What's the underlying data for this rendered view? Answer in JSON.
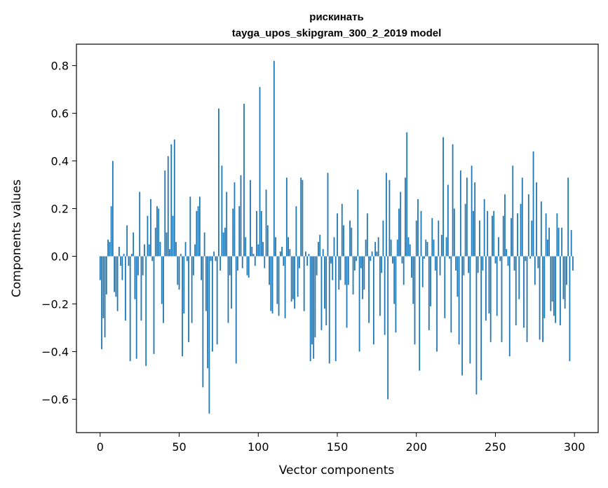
{
  "chart_data": {
    "type": "bar",
    "title": "рискинать",
    "subtitle": "tayga_upos_skipgram_300_2_2019 model",
    "xlabel": "Vector components",
    "ylabel": "Components values",
    "xlim": [
      -15,
      315
    ],
    "ylim": [
      -0.74,
      0.89
    ],
    "xticks": [
      0,
      50,
      100,
      150,
      200,
      250,
      300
    ],
    "xtick_labels": [
      "0",
      "50",
      "100",
      "150",
      "200",
      "250",
      "300"
    ],
    "yticks": [
      -0.6,
      -0.4,
      -0.2,
      0.0,
      0.2,
      0.4,
      0.6,
      0.8
    ],
    "ytick_labels": [
      "−0.6",
      "−0.4",
      "−0.2",
      "0.0",
      "0.2",
      "0.4",
      "0.6",
      "0.8"
    ],
    "grid": false,
    "bar_color": "#1f77b4",
    "x": "0..299",
    "values": [
      -0.1,
      -0.39,
      -0.26,
      -0.34,
      -0.16,
      0.07,
      0.06,
      0.21,
      0.4,
      -0.15,
      -0.17,
      -0.23,
      0.04,
      -0.04,
      -0.1,
      0.01,
      -0.27,
      0.13,
      -0.04,
      -0.44,
      0.01,
      0.1,
      -0.18,
      -0.43,
      -0.08,
      0.27,
      -0.27,
      -0.08,
      0.05,
      -0.46,
      0.17,
      0.05,
      0.24,
      -0.02,
      -0.41,
      0.12,
      0.21,
      0.2,
      0.06,
      -0.2,
      -0.28,
      0.36,
      0.1,
      0.42,
      0.03,
      0.47,
      0.17,
      0.49,
      0.06,
      -0.12,
      -0.14,
      0.01,
      -0.42,
      -0.24,
      0.06,
      -0.02,
      -0.36,
      0.25,
      -0.28,
      -0.08,
      0.05,
      0.19,
      0.21,
      0.25,
      -0.1,
      -0.55,
      0.1,
      -0.23,
      -0.47,
      -0.66,
      -0.02,
      -0.4,
      0.02,
      -0.02,
      -0.37,
      0.62,
      -0.06,
      0.38,
      0.1,
      0.12,
      0.27,
      -0.28,
      -0.08,
      -0.22,
      0.2,
      0.31,
      -0.45,
      -0.06,
      0.21,
      0.34,
      -0.05,
      0.64,
      0.08,
      -0.08,
      -0.09,
      0.32,
      0.04,
      0.01,
      -0.04,
      0.19,
      0.05,
      0.71,
      0.19,
      0.06,
      -0.05,
      0.28,
      0.13,
      -0.12,
      -0.23,
      -0.24,
      0.82,
      0.08,
      -0.2,
      -0.25,
      0.02,
      0.04,
      -0.04,
      -0.26,
      0.33,
      0.08,
      0.03,
      -0.19,
      -0.18,
      -0.22,
      0.21,
      -0.17,
      -0.05,
      0.33,
      0.32,
      -0.23,
      0.02,
      -0.04,
      0.01,
      -0.44,
      -0.37,
      -0.43,
      -0.34,
      -0.08,
      0.06,
      0.09,
      -0.31,
      0.03,
      -0.22,
      -0.29,
      0.35,
      -0.45,
      -0.03,
      -0.1,
      0.08,
      -0.44,
      0.18,
      -0.14,
      -0.1,
      0.22,
      0.13,
      -0.12,
      -0.3,
      -0.12,
      0.15,
      0.12,
      -0.16,
      -0.06,
      -0.02,
      0.28,
      -0.4,
      -0.05,
      -0.18,
      -0.14,
      0.07,
      0.18,
      -0.28,
      -0.02,
      0.02,
      -0.37,
      0.06,
      0.02,
      0.08,
      -0.25,
      -0.07,
      0.15,
      -0.33,
      0.35,
      -0.6,
      0.32,
      0.07,
      -0.03,
      -0.2,
      -0.32,
      0.07,
      0.2,
      0.27,
      -0.03,
      -0.12,
      0.33,
      0.52,
      0.08,
      0.05,
      -0.09,
      -0.2,
      -0.37,
      0.15,
      0.24,
      -0.48,
      0.19,
      -0.13,
      -0.01,
      0.07,
      0.06,
      -0.31,
      -0.21,
      0.16,
      0.07,
      -0.06,
      -0.4,
      0.15,
      -0.08,
      0.09,
      0.5,
      -0.26,
      0.08,
      0.3,
      -0.01,
      -0.32,
      0.47,
      0.2,
      -0.06,
      -0.17,
      -0.37,
      0.36,
      -0.5,
      -0.08,
      0.22,
      0.33,
      -0.07,
      -0.45,
      0.38,
      0.19,
      0.31,
      -0.58,
      -0.07,
      0.15,
      -0.52,
      -0.06,
      0.24,
      -0.27,
      0.19,
      -0.24,
      -0.36,
      0.17,
      0.19,
      -0.03,
      -0.25,
      0.08,
      -0.02,
      -0.36,
      0.17,
      0.26,
      0.03,
      -0.04,
      -0.42,
      0.16,
      0.38,
      -0.06,
      -0.29,
      0.18,
      -0.18,
      0.22,
      0.33,
      -0.3,
      -0.02,
      -0.36,
      0.26,
      -0.01,
      0.15,
      0.44,
      -0.12,
      0.31,
      -0.05,
      -0.35,
      0.23,
      -0.36,
      -0.26,
      0.18,
      0.07,
      0.12,
      -0.23,
      -0.19,
      -0.25,
      -0.28,
      0.18,
      0.12,
      -0.29,
      0.12,
      -0.18,
      -0.22,
      -0.12,
      0.33,
      -0.44,
      0.11,
      -0.06
    ]
  }
}
